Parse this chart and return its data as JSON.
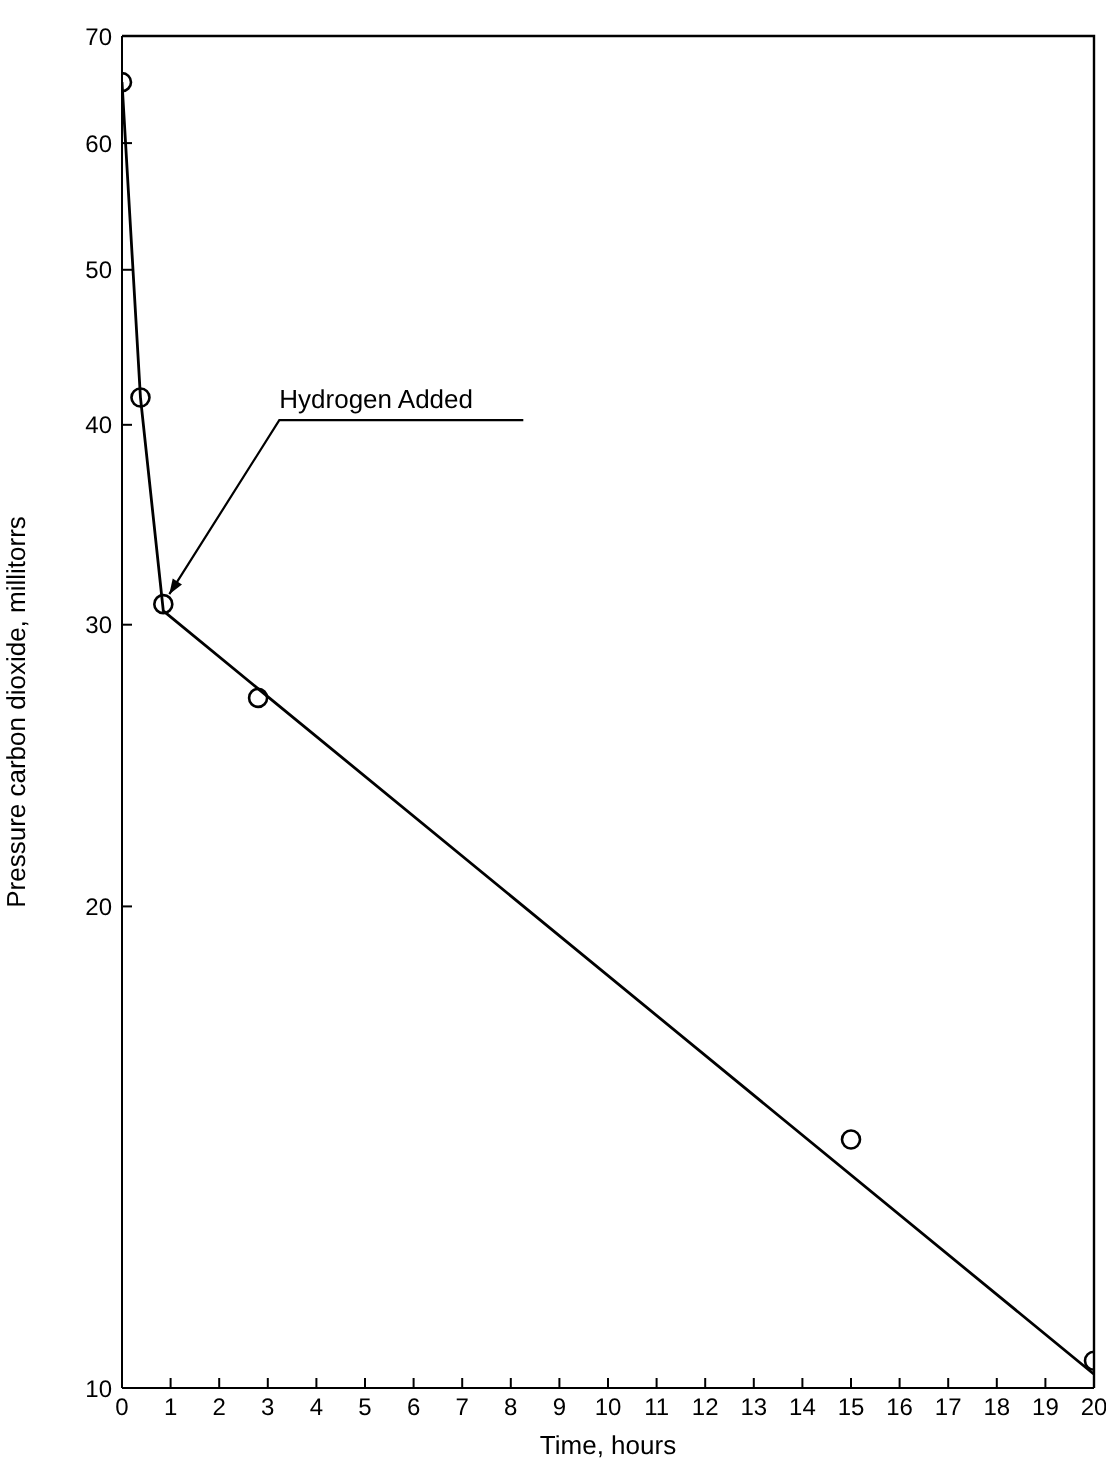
{
  "chart_data": {
    "type": "line",
    "xlabel": "Time, hours",
    "ylabel": "Pressure carbon dioxide, millitorrs",
    "series": [
      {
        "type": "scatter",
        "marker": "circle",
        "color": "#000000",
        "x": [
          0,
          0.38,
          0.85,
          2.8,
          15,
          20
        ],
        "values": [
          65.5,
          41.6,
          30.9,
          27.0,
          14.3,
          10.4
        ]
      },
      {
        "marker": "none",
        "color": "#000000",
        "x": [
          0,
          0.38,
          0.85,
          20
        ],
        "values": [
          65.5,
          41.6,
          30.6,
          10.2
        ]
      }
    ],
    "xlim": [
      0,
      20
    ],
    "xticks": [
      0,
      1,
      2,
      3,
      4,
      5,
      6,
      7,
      8,
      9,
      10,
      11,
      12,
      13,
      14,
      15,
      16,
      17,
      18,
      19,
      20
    ],
    "ylim": [
      10,
      70
    ],
    "yticks": [
      10,
      20,
      30,
      40,
      50,
      60,
      70
    ],
    "log": "y",
    "line_style": "solid",
    "annotations": [
      {
        "text": "Hydrogen Added",
        "x": 0.85,
        "y": 30.9
      }
    ]
  }
}
